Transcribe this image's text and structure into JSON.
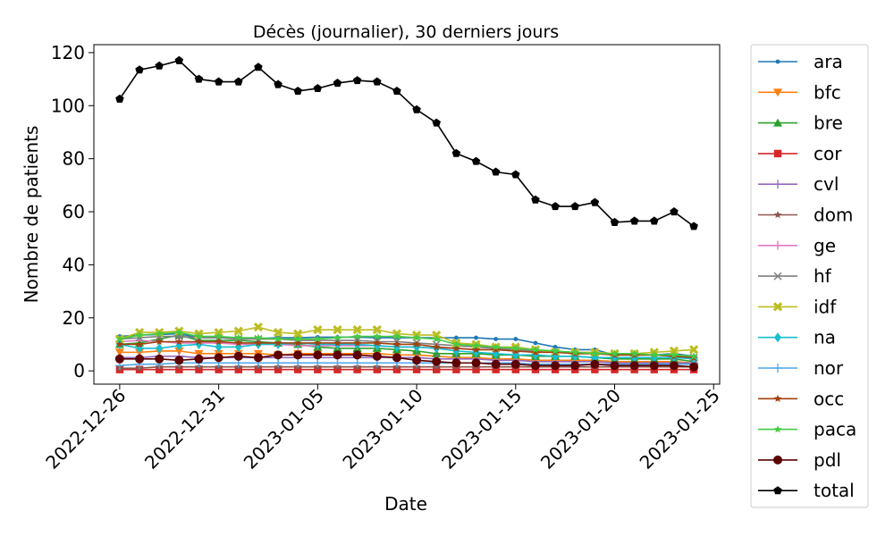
{
  "chart_data": {
    "type": "line",
    "title": "Décès (journalier), 30 derniers jours",
    "xlabel": "Date",
    "ylabel": "Nombre de patients",
    "x": [
      "2022-12-26",
      "2022-12-27",
      "2022-12-28",
      "2022-12-29",
      "2022-12-30",
      "2022-12-31",
      "2023-01-01",
      "2023-01-02",
      "2023-01-03",
      "2023-01-04",
      "2023-01-05",
      "2023-01-06",
      "2023-01-07",
      "2023-01-08",
      "2023-01-09",
      "2023-01-10",
      "2023-01-11",
      "2023-01-12",
      "2023-01-13",
      "2023-01-14",
      "2023-01-15",
      "2023-01-16",
      "2023-01-17",
      "2023-01-18",
      "2023-01-19",
      "2023-01-20",
      "2023-01-21",
      "2023-01-22",
      "2023-01-23",
      "2023-01-24"
    ],
    "x_ticks": [
      "2022-12-26",
      "2022-12-31",
      "2023-01-05",
      "2023-01-10",
      "2023-01-15",
      "2023-01-20",
      "2023-01-25"
    ],
    "ylim": [
      -5,
      123
    ],
    "y_ticks": [
      0,
      20,
      40,
      60,
      80,
      100,
      120
    ],
    "grid": false,
    "legend_position": "outside-right",
    "series": [
      {
        "name": "ara",
        "color": "#1f77b4",
        "marker": "point",
        "values": [
          13,
          13.5,
          13.7,
          14,
          12.5,
          12.5,
          12.5,
          12.2,
          12.5,
          12.5,
          12.7,
          12.7,
          12.7,
          12.5,
          12.5,
          12.5,
          12.5,
          12.5,
          12.5,
          12,
          12,
          10.5,
          9,
          8,
          8,
          6,
          6,
          6,
          6.5,
          5.5
        ]
      },
      {
        "name": "bfc",
        "color": "#ff7f0e",
        "marker": "triangle-down",
        "values": [
          7,
          7,
          7.5,
          7.5,
          6.5,
          6.5,
          6.5,
          6.5,
          6,
          6.5,
          6.5,
          6.5,
          6.5,
          6.5,
          6,
          6,
          5.5,
          5,
          5,
          4.5,
          4.5,
          4,
          4,
          4,
          4,
          3.5,
          3.5,
          3.5,
          3.5,
          3
        ]
      },
      {
        "name": "bre",
        "color": "#2ca02c",
        "marker": "triangle-up",
        "values": [
          10,
          10.5,
          12,
          13.5,
          11.5,
          11.5,
          11.5,
          11,
          10.5,
          10,
          9,
          8.5,
          8.5,
          8.5,
          8,
          7.5,
          6.5,
          6.5,
          6.5,
          6,
          6,
          5.5,
          5.5,
          5.5,
          5,
          4.5,
          4.5,
          4.5,
          4.5,
          3.5
        ]
      },
      {
        "name": "cor",
        "color": "#d62728",
        "marker": "square",
        "values": [
          0.5,
          0.5,
          0.5,
          0.5,
          0.5,
          0.5,
          0.5,
          0.5,
          0.5,
          0.5,
          0.5,
          0.5,
          0.5,
          0.5,
          0.5,
          0.5,
          0.5,
          0.5,
          0.5,
          0.5,
          0.5,
          0.5,
          0.5,
          0.5,
          0.5,
          0.5,
          0.5,
          0.5,
          0.5,
          0.5
        ]
      },
      {
        "name": "cvl",
        "color": "#9467bd",
        "marker": "plus",
        "values": [
          5,
          5,
          5.5,
          5.5,
          5,
          5,
          5,
          5,
          5,
          5,
          5,
          5,
          5,
          5,
          5,
          5,
          4.5,
          4.5,
          4.5,
          4,
          4,
          3.5,
          3.5,
          3.5,
          3.5,
          3,
          3,
          3,
          3,
          3
        ]
      },
      {
        "name": "dom",
        "color": "#8c564b",
        "marker": "star",
        "values": [
          1,
          1,
          1.5,
          1.5,
          1.5,
          1.5,
          1.5,
          1.5,
          1.5,
          1.5,
          1.5,
          1.5,
          1.5,
          1.5,
          1.5,
          1.5,
          1.5,
          1.5,
          1.5,
          1.5,
          1.5,
          1.5,
          1.5,
          1.5,
          1.5,
          1.5,
          1.5,
          1.5,
          1.5,
          1.5
        ]
      },
      {
        "name": "ge",
        "color": "#e377c2",
        "marker": "plus",
        "values": [
          11,
          11.5,
          11,
          10.5,
          10.5,
          10.5,
          10,
          10,
          10,
          9.5,
          9.5,
          9.5,
          9.5,
          9.5,
          9,
          9,
          8.5,
          8.5,
          8,
          8,
          7.5,
          7,
          7,
          6.5,
          6.5,
          6,
          6,
          6,
          5.5,
          5
        ]
      },
      {
        "name": "hf",
        "color": "#7f7f7f",
        "marker": "x",
        "values": [
          12,
          12.5,
          13,
          13,
          12.5,
          12.5,
          12,
          12,
          12,
          11.5,
          11.5,
          11.5,
          11.5,
          11,
          11,
          10.5,
          10,
          9.5,
          9,
          8.5,
          8,
          7.5,
          7,
          7,
          6.5,
          6.5,
          6,
          6,
          5.5,
          5
        ]
      },
      {
        "name": "idf",
        "color": "#bcbd22",
        "marker": "x-bold",
        "values": [
          12,
          14.5,
          14.5,
          15,
          14,
          14.5,
          15,
          16.5,
          14.5,
          14,
          15.5,
          15.5,
          15.5,
          15.5,
          14,
          13.5,
          13.5,
          10.5,
          10,
          9,
          9,
          8,
          7,
          7,
          7,
          6.5,
          6.5,
          7,
          7.5,
          8
        ]
      },
      {
        "name": "na",
        "color": "#17becf",
        "marker": "diamond",
        "values": [
          10,
          8.5,
          8.5,
          9.5,
          10,
          9,
          9,
          10,
          10,
          10.5,
          10,
          10,
          10,
          9.5,
          9,
          9,
          8.5,
          7.5,
          7,
          6.5,
          6,
          6,
          5.5,
          5.5,
          5,
          5,
          5,
          5,
          5,
          4.5
        ]
      },
      {
        "name": "nor",
        "color": "#4da6e8",
        "marker": "plus",
        "values": [
          2,
          2.5,
          2.5,
          3,
          3,
          3,
          3,
          3,
          3,
          3,
          3,
          3,
          3,
          3,
          3,
          3,
          3,
          3,
          3,
          3,
          3,
          2.5,
          2.5,
          2.5,
          2.5,
          2.5,
          2.5,
          2.5,
          2.5,
          2.5
        ]
      },
      {
        "name": "occ",
        "color": "#a0410d",
        "marker": "star",
        "values": [
          10,
          10,
          11,
          11,
          11,
          11,
          10.5,
          10.5,
          10.5,
          10.5,
          10.5,
          10.5,
          10.5,
          10.5,
          10,
          10,
          9,
          8.5,
          8,
          8,
          7.5,
          7,
          7,
          6.5,
          6.5,
          6,
          6,
          6,
          5.5,
          5
        ]
      },
      {
        "name": "paca",
        "color": "#44cc44",
        "marker": "star",
        "values": [
          12,
          13.5,
          14,
          14.5,
          13,
          13,
          12.5,
          12.5,
          12,
          12,
          12,
          12.5,
          13,
          13,
          13,
          12.5,
          12,
          10,
          9.5,
          9,
          8.5,
          8,
          7.5,
          7,
          6.5,
          6.5,
          6.5,
          6,
          6,
          5.5
        ]
      },
      {
        "name": "pdl",
        "color": "#5c0000",
        "marker": "circle",
        "values": [
          4.5,
          4.5,
          4.5,
          4,
          4.5,
          5,
          5.5,
          5,
          6,
          6,
          6,
          6,
          6,
          5.5,
          5,
          4,
          3.5,
          3,
          3,
          2.5,
          2.5,
          2,
          2,
          2,
          2.5,
          2,
          2,
          2,
          2,
          1.5
        ]
      },
      {
        "name": "total",
        "color": "#000000",
        "marker": "pentagon",
        "values": [
          102.5,
          113.5,
          115,
          117,
          110,
          109,
          109,
          114.5,
          108,
          105.5,
          106.5,
          108.5,
          109.5,
          109,
          105.5,
          98.5,
          93.5,
          82,
          79,
          75,
          74,
          64.5,
          62,
          62,
          63.5,
          56,
          56.5,
          56.5,
          60,
          54.5
        ]
      }
    ]
  }
}
